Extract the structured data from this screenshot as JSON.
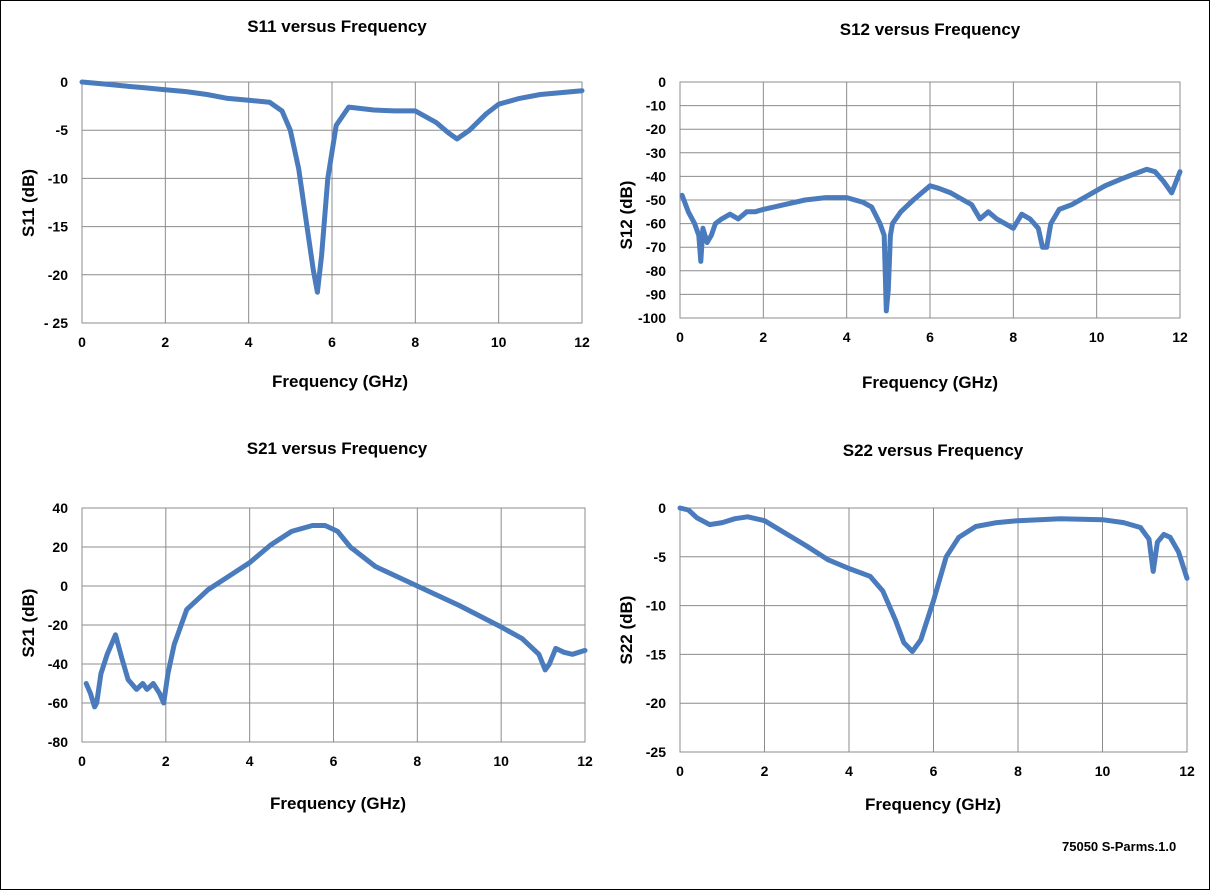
{
  "figure_id": "75050 S-Parms.1.0",
  "style": {
    "line_color": "#4a7bbd"
  },
  "chart_data": [
    {
      "type": "line",
      "title": "S11 versus Frequency",
      "xlabel": "Frequency (GHz)",
      "ylabel": "S11 (dB)",
      "xlim": [
        0,
        12
      ],
      "ylim": [
        -25,
        0
      ],
      "xticks": [
        0,
        2,
        4,
        6,
        8,
        10,
        12
      ],
      "xtick_labels": [
        "0",
        "2",
        "4",
        "6",
        "8",
        "10",
        "12"
      ],
      "yticks": [
        0,
        -5,
        -10,
        -15,
        -20,
        -25
      ],
      "ytick_labels": [
        "0",
        "-5",
        "-10",
        "-15",
        "-20",
        "- 25"
      ],
      "grid": true,
      "series": [
        {
          "x": [
            0,
            0.5,
            1,
            1.5,
            2,
            2.5,
            3,
            3.5,
            4,
            4.5,
            4.8,
            5.0,
            5.2,
            5.4,
            5.55,
            5.65,
            5.75,
            5.9,
            6.1,
            6.4,
            7,
            7.5,
            8,
            8.5,
            8.8,
            9,
            9.3,
            9.7,
            10,
            10.5,
            11,
            11.5,
            12
          ],
          "y": [
            0,
            -0.2,
            -0.4,
            -0.6,
            -0.8,
            -1.0,
            -1.3,
            -1.7,
            -1.9,
            -2.1,
            -3.0,
            -5.0,
            -9.0,
            -15.0,
            -19.5,
            -21.8,
            -18.0,
            -10.0,
            -4.5,
            -2.6,
            -2.9,
            -3.0,
            -3.0,
            -4.2,
            -5.3,
            -5.9,
            -5.0,
            -3.3,
            -2.3,
            -1.7,
            -1.3,
            -1.1,
            -0.9
          ]
        }
      ]
    },
    {
      "type": "line",
      "title": "S12 versus Frequency",
      "xlabel": "Frequency (GHz)",
      "ylabel": "S12 (dB)",
      "xlim": [
        0,
        12
      ],
      "ylim": [
        -100,
        0
      ],
      "xticks": [
        0,
        2,
        4,
        6,
        8,
        10,
        12
      ],
      "xtick_labels": [
        "0",
        "2",
        "4",
        "6",
        "8",
        "10",
        "12"
      ],
      "yticks": [
        0,
        -10,
        -20,
        -30,
        -40,
        -50,
        -60,
        -70,
        -80,
        -90,
        -100
      ],
      "ytick_labels": [
        "0",
        "-10",
        "-20",
        "-30",
        "-40",
        "-50",
        "-60",
        "-70",
        "-80",
        "-90",
        "-100"
      ],
      "grid": true,
      "series": [
        {
          "x": [
            0.05,
            0.2,
            0.35,
            0.45,
            0.5,
            0.55,
            0.65,
            0.75,
            0.85,
            1.0,
            1.2,
            1.4,
            1.6,
            1.8,
            2.0,
            2.5,
            3.0,
            3.5,
            4.0,
            4.4,
            4.6,
            4.8,
            4.9,
            4.95,
            5.0,
            5.05,
            5.1,
            5.3,
            5.6,
            6.0,
            6.2,
            6.5,
            6.8,
            7.0,
            7.2,
            7.4,
            7.6,
            7.8,
            8.0,
            8.2,
            8.4,
            8.6,
            8.7,
            8.8,
            8.9,
            9.1,
            9.4,
            9.8,
            10.2,
            10.6,
            10.9,
            11.2,
            11.4,
            11.6,
            11.8,
            12.0
          ],
          "y": [
            -48,
            -55,
            -60,
            -65,
            -76,
            -62,
            -68,
            -65,
            -60,
            -58,
            -56,
            -58,
            -55,
            -55,
            -54,
            -52,
            -50,
            -49,
            -49,
            -51,
            -53,
            -60,
            -65,
            -97,
            -88,
            -65,
            -60,
            -55,
            -50,
            -44,
            -45,
            -47,
            -50,
            -52,
            -58,
            -55,
            -58,
            -60,
            -62,
            -56,
            -58,
            -62,
            -70,
            -70,
            -60,
            -54,
            -52,
            -48,
            -44,
            -41,
            -39,
            -37,
            -38,
            -42,
            -47,
            -38
          ]
        }
      ]
    },
    {
      "type": "line",
      "title": "S21 versus Frequency",
      "xlabel": "Frequency (GHz)",
      "ylabel": "S21 (dB)",
      "xlim": [
        0,
        12
      ],
      "ylim": [
        -80,
        40
      ],
      "xticks": [
        0,
        2,
        4,
        6,
        8,
        10,
        12
      ],
      "xtick_labels": [
        "0",
        "2",
        "4",
        "6",
        "8",
        "10",
        "12"
      ],
      "yticks": [
        40,
        20,
        0,
        -20,
        -40,
        -60,
        -80
      ],
      "ytick_labels": [
        "40",
        "20",
        "0",
        "-20",
        "-40",
        "-60",
        "-80"
      ],
      "grid": true,
      "series": [
        {
          "x": [
            0.1,
            0.2,
            0.3,
            0.35,
            0.45,
            0.6,
            0.8,
            0.95,
            1.1,
            1.3,
            1.45,
            1.55,
            1.7,
            1.85,
            1.95,
            2.05,
            2.2,
            2.5,
            3.0,
            3.5,
            4.0,
            4.5,
            5.0,
            5.5,
            5.8,
            6.1,
            6.4,
            7.0,
            8.0,
            9.0,
            10.0,
            10.5,
            10.9,
            11.05,
            11.15,
            11.3,
            11.5,
            11.7,
            12.0
          ],
          "y": [
            -50,
            -55,
            -62,
            -60,
            -45,
            -35,
            -25,
            -37,
            -48,
            -53,
            -50,
            -53,
            -50,
            -55,
            -60,
            -45,
            -30,
            -12,
            -2,
            5,
            12,
            21,
            28,
            31,
            31,
            28,
            20,
            10,
            0,
            -10,
            -21,
            -27,
            -35,
            -43,
            -40,
            -32,
            -34,
            -35,
            -33
          ]
        }
      ]
    },
    {
      "type": "line",
      "title": "S22 versus Frequency",
      "xlabel": "Frequency (GHz)",
      "ylabel": "S22 (dB)",
      "xlim": [
        0,
        12
      ],
      "ylim": [
        -25,
        0
      ],
      "xticks": [
        0,
        2,
        4,
        6,
        8,
        10,
        12
      ],
      "xtick_labels": [
        "0",
        "2",
        "4",
        "6",
        "8",
        "10",
        "12"
      ],
      "yticks": [
        0,
        -5,
        -10,
        -15,
        -20,
        -25
      ],
      "ytick_labels": [
        "0",
        "-5",
        "-10",
        "-15",
        "-20",
        "-25"
      ],
      "grid": true,
      "series": [
        {
          "x": [
            0,
            0.2,
            0.4,
            0.7,
            1.0,
            1.3,
            1.6,
            2.0,
            2.5,
            3.0,
            3.5,
            4.0,
            4.5,
            4.8,
            5.1,
            5.3,
            5.5,
            5.7,
            6.0,
            6.3,
            6.6,
            7.0,
            7.5,
            8.0,
            9.0,
            10.0,
            10.5,
            10.9,
            11.1,
            11.2,
            11.3,
            11.45,
            11.6,
            11.8,
            12.0
          ],
          "y": [
            0,
            -0.2,
            -1.0,
            -1.7,
            -1.5,
            -1.1,
            -0.9,
            -1.3,
            -2.6,
            -3.9,
            -5.3,
            -6.2,
            -7.0,
            -8.5,
            -11.5,
            -13.8,
            -14.7,
            -13.5,
            -9.5,
            -5.0,
            -3.0,
            -1.9,
            -1.5,
            -1.3,
            -1.1,
            -1.2,
            -1.5,
            -2.0,
            -3.2,
            -6.5,
            -3.5,
            -2.7,
            -3.0,
            -4.5,
            -7.2
          ]
        }
      ]
    }
  ]
}
